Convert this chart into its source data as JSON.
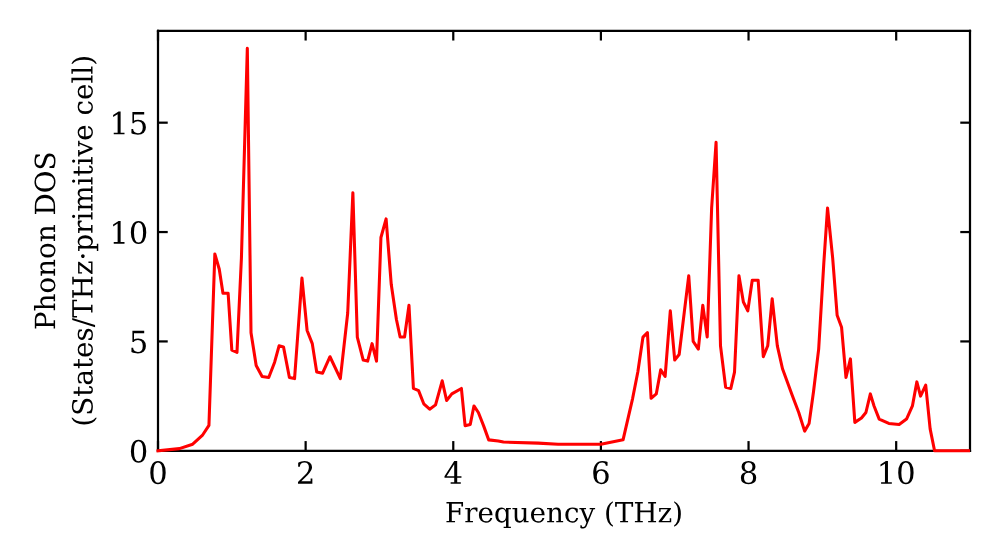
{
  "chart_data": {
    "type": "line",
    "xlabel": "Frequency (THz)",
    "ylabel": "Phonon DOS\n(States/THz·primitive cell)",
    "xlim": [
      0,
      11
    ],
    "ylim": [
      0,
      19.2
    ],
    "xticks": [
      0,
      2,
      4,
      6,
      8,
      10
    ],
    "yticks": [
      0,
      5,
      10,
      15
    ],
    "grid": false,
    "marker": "none",
    "line_style": "solid",
    "series": [
      {
        "color": "#ff0000",
        "x": [
          0,
          0.29,
          0.47,
          0.6,
          0.69,
          0.77,
          0.83,
          0.88,
          0.95,
          1.0,
          1.07,
          1.13,
          1.21,
          1.26,
          1.33,
          1.41,
          1.5,
          1.58,
          1.64,
          1.7,
          1.78,
          1.85,
          1.95,
          2.02,
          2.09,
          2.15,
          2.23,
          2.33,
          2.47,
          2.57,
          2.64,
          2.7,
          2.78,
          2.84,
          2.9,
          2.96,
          3.02,
          3.09,
          3.16,
          3.23,
          3.28,
          3.34,
          3.4,
          3.46,
          3.53,
          3.6,
          3.68,
          3.76,
          3.85,
          3.91,
          3.98,
          4.11,
          4.16,
          4.23,
          4.28,
          4.34,
          4.41,
          4.48,
          4.61,
          4.68,
          5.15,
          5.42,
          6.0,
          6.3,
          6.43,
          6.5,
          6.57,
          6.63,
          6.68,
          6.75,
          6.81,
          6.87,
          6.94,
          7.0,
          7.06,
          7.13,
          7.19,
          7.25,
          7.32,
          7.38,
          7.44,
          7.5,
          7.56,
          7.62,
          7.69,
          7.76,
          7.81,
          7.87,
          7.93,
          7.99,
          8.05,
          8.13,
          8.2,
          8.26,
          8.32,
          8.39,
          8.46,
          8.59,
          8.68,
          8.76,
          8.82,
          8.88,
          8.95,
          9.02,
          9.07,
          9.14,
          9.2,
          9.26,
          9.32,
          9.38,
          9.44,
          9.53,
          9.59,
          9.65,
          9.7,
          9.77,
          9.9,
          10.04,
          10.14,
          10.22,
          10.28,
          10.33,
          10.4,
          10.46,
          10.52,
          10.98
        ],
        "values": [
          0,
          0.1,
          0.3,
          0.7,
          1.16,
          9.0,
          8.3,
          7.2,
          7.2,
          4.6,
          4.5,
          8.8,
          18.4,
          5.4,
          3.9,
          3.4,
          3.35,
          4.05,
          4.8,
          4.75,
          3.35,
          3.3,
          7.9,
          5.5,
          4.9,
          3.6,
          3.55,
          4.3,
          3.3,
          6.3,
          11.8,
          5.2,
          4.15,
          4.1,
          4.9,
          4.1,
          9.75,
          10.6,
          7.6,
          6.0,
          5.2,
          5.2,
          6.65,
          2.85,
          2.75,
          2.15,
          1.9,
          2.1,
          3.2,
          2.3,
          2.6,
          2.85,
          1.15,
          1.2,
          2.05,
          1.75,
          1.15,
          0.5,
          0.45,
          0.4,
          0.35,
          0.3,
          0.3,
          0.5,
          2.4,
          3.6,
          5.2,
          5.4,
          2.4,
          2.6,
          3.7,
          3.4,
          6.4,
          4.15,
          4.4,
          6.35,
          8.0,
          5.0,
          4.65,
          6.65,
          5.2,
          11.1,
          14.1,
          4.8,
          2.9,
          2.85,
          3.6,
          8.0,
          6.8,
          6.4,
          7.8,
          7.8,
          4.3,
          4.8,
          6.95,
          4.8,
          3.75,
          2.55,
          1.75,
          0.9,
          1.25,
          2.7,
          4.65,
          8.6,
          11.1,
          8.8,
          6.2,
          5.65,
          3.35,
          4.2,
          1.3,
          1.5,
          1.75,
          2.6,
          2.05,
          1.45,
          1.25,
          1.2,
          1.45,
          2.05,
          3.15,
          2.5,
          3.0,
          1.0,
          0,
          0
        ]
      }
    ]
  }
}
